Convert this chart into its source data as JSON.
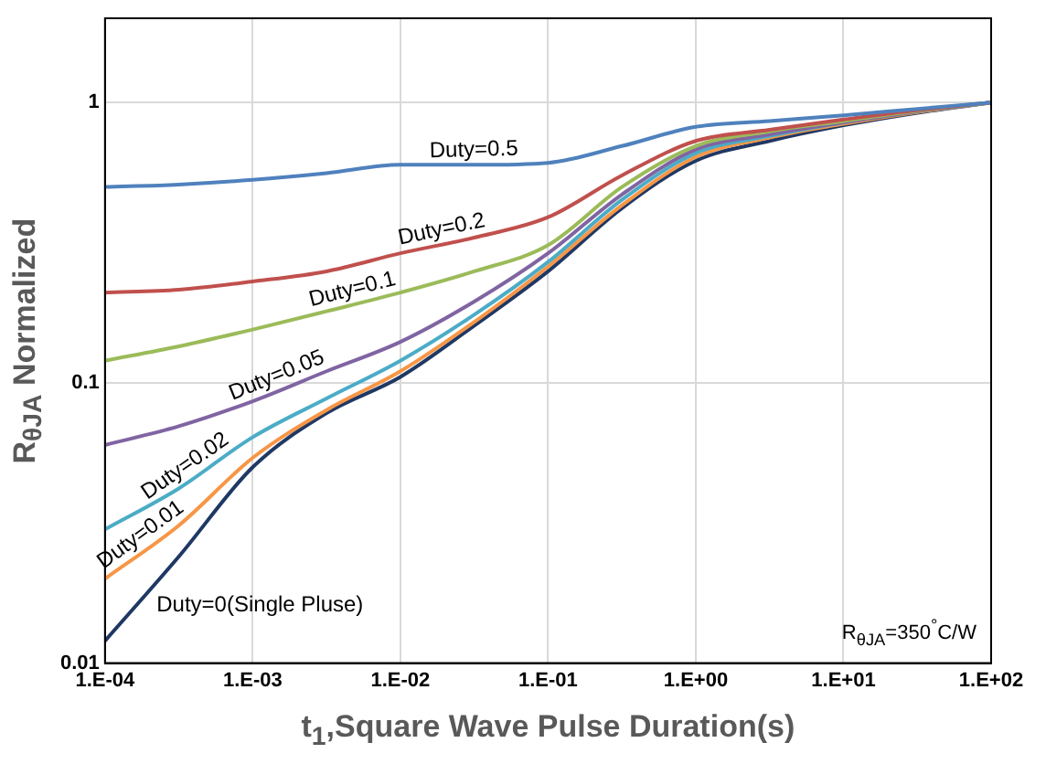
{
  "chart_data": {
    "type": "line",
    "xlabel": "t$_{1}$,Square Wave Pulse Duration(s)",
    "ylabel": "R$_{θJA}$ Normalized",
    "log": "y",
    "grid": true,
    "legend": false,
    "marker": "none",
    "line_style": "solid",
    "categories": [
      "1.E-04",
      null,
      "1.E-03",
      null,
      "1.E-02",
      null,
      "1.E-01",
      null,
      "1.E+00",
      null,
      "1.E+01",
      null,
      "1.E+02"
    ],
    "ylim": [
      0.01,
      2
    ],
    "yticks": [
      0.01,
      0.1,
      1
    ],
    "annotations": [
      "R$_{θJA}$=350$^{°}$C/W"
    ],
    "series": [
      {
        "name": "Duty=0.5",
        "color": "#4f81bd",
        "values": [
          0.5,
          0.51,
          0.53,
          0.56,
          0.6,
          0.6,
          0.61,
          0.7,
          0.82,
          0.86,
          0.9,
          0.95,
          1
        ]
      },
      {
        "name": "Duty=0.2",
        "color": "#c0504d",
        "values": [
          0.21,
          0.215,
          0.23,
          0.25,
          0.29,
          0.33,
          0.39,
          0.55,
          0.73,
          0.8,
          0.87,
          0.94,
          1
        ]
      },
      {
        "name": "Duty=0.1",
        "color": "#9bbb59",
        "values": [
          0.12,
          0.135,
          0.155,
          0.18,
          0.21,
          0.25,
          0.31,
          0.5,
          0.7,
          0.79,
          0.86,
          0.935,
          1
        ]
      },
      {
        "name": "Duty=0.05",
        "color": "#8064a2",
        "values": [
          0.06,
          0.07,
          0.086,
          0.11,
          0.14,
          0.195,
          0.29,
          0.47,
          0.68,
          0.77,
          0.85,
          0.93,
          1
        ]
      },
      {
        "name": "Duty=0.02",
        "color": "#4bacc6",
        "values": [
          0.03,
          0.042,
          0.064,
          0.088,
          0.12,
          0.175,
          0.27,
          0.45,
          0.66,
          0.76,
          0.85,
          0.93,
          1
        ]
      },
      {
        "name": "Duty=0.01",
        "color": "#f79646",
        "values": [
          0.02,
          0.031,
          0.054,
          0.08,
          0.11,
          0.165,
          0.26,
          0.43,
          0.64,
          0.75,
          0.84,
          0.925,
          1
        ]
      },
      {
        "name": "Duty=0(Single Pluse)",
        "color": "#1f3864",
        "values": [
          0.012,
          0.024,
          0.05,
          0.078,
          0.105,
          0.16,
          0.25,
          0.42,
          0.62,
          0.73,
          0.83,
          0.92,
          1
        ]
      }
    ]
  }
}
